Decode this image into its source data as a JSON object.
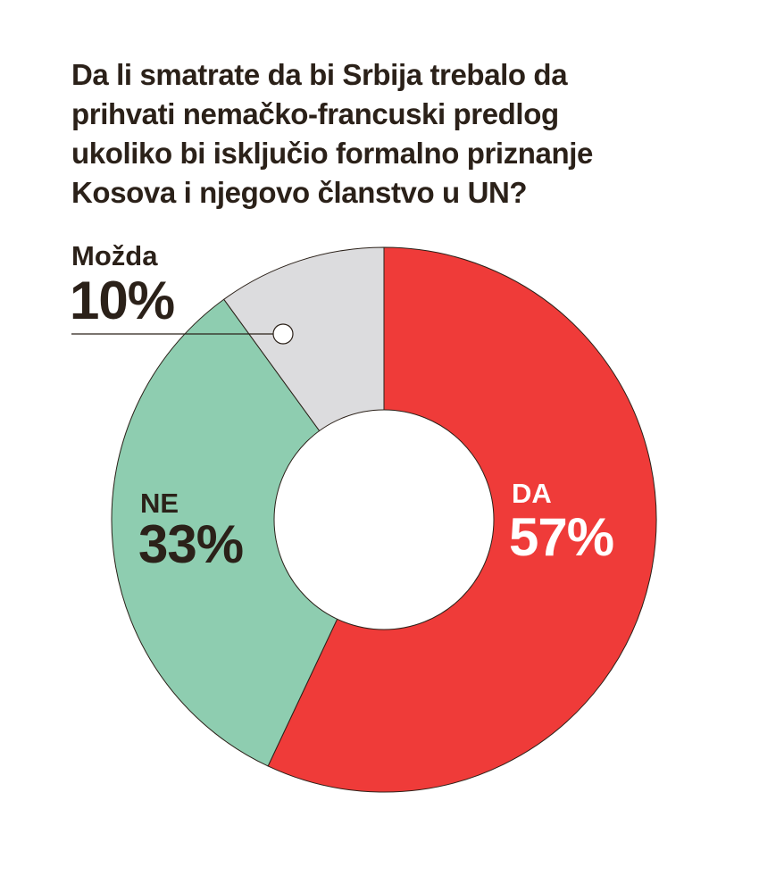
{
  "chart_data": {
    "type": "pie",
    "title": "Da li smatrate da bi Srbija trebalo da prihvati nemačko-francuski predlog ukoliko bi isključio formalno priznanje Kosova i njegovo članstvo u UN?",
    "title_lines": [
      "Da li smatrate da bi Srbija trebalo da",
      "prihvati nemačko-francuski predlog",
      "ukoliko bi isključio formalno priznanje",
      "Kosova i njegovo članstvo u UN?"
    ],
    "donut": true,
    "start": "top, clockwise",
    "slices": [
      {
        "label": "DA",
        "value": 57,
        "value_text": "57%",
        "color": "#ef3b39",
        "label_color": "#ffffff"
      },
      {
        "label": "NE",
        "value": 33,
        "value_text": "33%",
        "color": "#8ecdb0",
        "label_color": "#2b2119"
      },
      {
        "label": "Možda",
        "value": 10,
        "value_text": "10%",
        "color": "#dcdcde",
        "label_color": "#2b2119"
      }
    ]
  }
}
